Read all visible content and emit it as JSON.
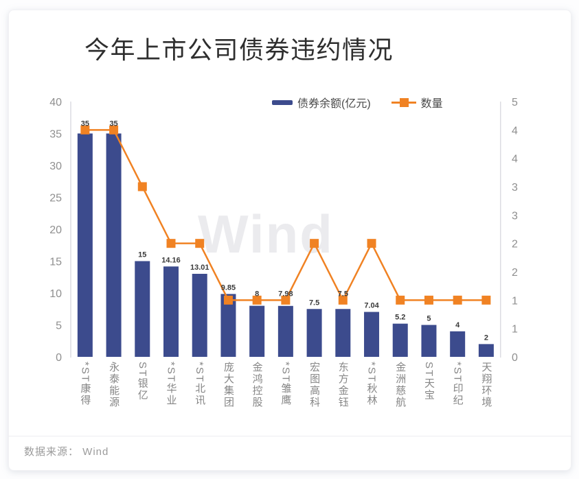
{
  "title": "今年上市公司债券违约情况",
  "watermark": "Wind",
  "footer": {
    "source": "数据来源： Wind"
  },
  "legend": {
    "items": [
      {
        "label": "债券余额(亿元)",
        "type": "bar",
        "color": "#3c4b8d"
      },
      {
        "label": "数量",
        "type": "line",
        "color": "#f08223"
      }
    ]
  },
  "chart_data": {
    "type": "combo-bar-line",
    "title": "今年上市公司债券违约情况",
    "categories": [
      "*ST康得",
      "永泰能源",
      "ST银亿",
      "*ST华业",
      "*ST北讯",
      "庞大集团",
      "金鸿控股",
      "*ST雏鹰",
      "宏图高科",
      "东方金钰",
      "*ST秋林",
      "金洲慈航",
      "ST天宝",
      "*ST印纪",
      "天翔环境"
    ],
    "series": [
      {
        "name": "债券余额(亿元)",
        "type": "bar",
        "axis": "left",
        "color": "#3c4b8d",
        "values": [
          35,
          35,
          15,
          14.16,
          13.01,
          9.85,
          8,
          7.98,
          7.5,
          7.5,
          7.04,
          5.2,
          5,
          4,
          2
        ],
        "labels": [
          "35",
          "35",
          "15",
          "14.16",
          "13.01",
          "9.85",
          "8",
          "7.98",
          "7.5",
          "7.5",
          "7.04",
          "5.2",
          "5",
          "4",
          "2"
        ]
      },
      {
        "name": "数量",
        "type": "line",
        "axis": "right",
        "color": "#f08223",
        "values": [
          4,
          4,
          3,
          2,
          2,
          1,
          1,
          1,
          2,
          1,
          2,
          1,
          1,
          1,
          1
        ]
      }
    ],
    "left_axis": {
      "min": 0,
      "max": 40,
      "tick_labels": [
        "40",
        "35",
        "30",
        "25",
        "20",
        "15",
        "10",
        "5",
        "0"
      ]
    },
    "right_axis": {
      "min": 0,
      "max": 4.5,
      "tick_labels": [
        "5",
        "4",
        "4",
        "3",
        "3",
        "2",
        "2",
        "1",
        "1",
        "0"
      ]
    },
    "grid": false,
    "legend_position": "top"
  }
}
